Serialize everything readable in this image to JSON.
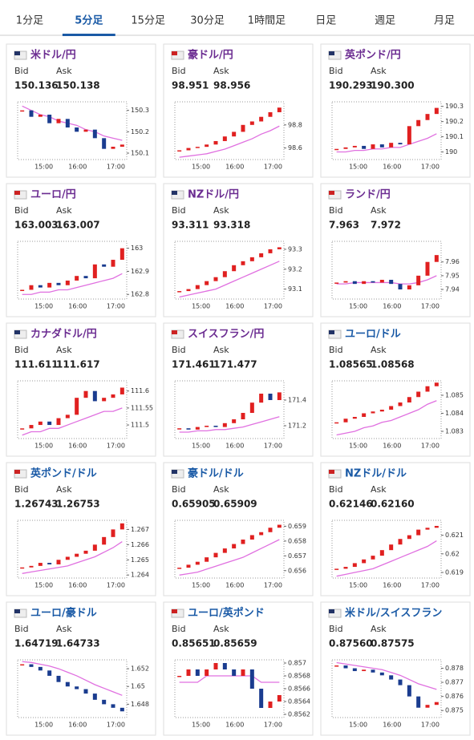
{
  "tabs": {
    "items": [
      "1分足",
      "5分足",
      "15分足",
      "30分足",
      "1時間足",
      "日足",
      "週足",
      "月足"
    ],
    "selected": 1
  },
  "labels": {
    "bid": "Bid",
    "ask": "Ask"
  },
  "cards": [
    {
      "title": "米ドル/円",
      "color": "#6b2c91",
      "bid": "150.136",
      "ask": "150.138",
      "chart": {
        "type": "candlestick",
        "xticks": [
          "15:00",
          "16:00",
          "17:00"
        ],
        "ylim": [
          150.07,
          150.34
        ],
        "yticks": [
          150.3,
          150.2,
          150.1
        ],
        "close": [
          150.3,
          150.27,
          150.28,
          150.24,
          150.26,
          150.22,
          150.2,
          150.21,
          150.17,
          150.12,
          150.13,
          150.14
        ],
        "ma": [
          150.32,
          150.3,
          150.28,
          150.27,
          150.25,
          150.24,
          150.23,
          150.21,
          150.2,
          150.18,
          150.17,
          150.16
        ]
      }
    },
    {
      "title": "豪ドル/円",
      "color": "#6b2c91",
      "bid": "98.951",
      "ask": "98.956",
      "chart": {
        "type": "candlestick",
        "xticks": [
          "15:00",
          "16:00",
          "17:00"
        ],
        "ylim": [
          98.5,
          99.0
        ],
        "yticks": [
          98.8,
          98.6
        ],
        "close": [
          98.58,
          98.6,
          98.61,
          98.63,
          98.66,
          98.7,
          98.74,
          98.8,
          98.83,
          98.87,
          98.91,
          98.95
        ],
        "ma": [
          98.52,
          98.53,
          98.54,
          98.55,
          98.57,
          98.59,
          98.62,
          98.65,
          98.68,
          98.72,
          98.75,
          98.79
        ]
      }
    },
    {
      "title": "英ポンド/円",
      "color": "#6b2c91",
      "bid": "190.293",
      "ask": "190.300",
      "chart": {
        "type": "candlestick",
        "xticks": [
          "15:00",
          "16:00",
          "17:00"
        ],
        "ylim": [
          189.95,
          190.33
        ],
        "yticks": [
          190.3,
          190.2,
          190.1,
          190
        ],
        "close": [
          190.02,
          190.03,
          190.04,
          190.02,
          190.05,
          190.03,
          190.06,
          190.05,
          190.17,
          190.21,
          190.25,
          190.29
        ],
        "ma": [
          190.0,
          190.0,
          190.01,
          190.01,
          190.02,
          190.02,
          190.03,
          190.03,
          190.05,
          190.07,
          190.09,
          190.12
        ]
      }
    },
    {
      "title": "ユーロ/円",
      "color": "#6b2c91",
      "bid": "163.003",
      "ask": "163.007",
      "chart": {
        "type": "candlestick",
        "xticks": [
          "15:00",
          "16:00",
          "17:00"
        ],
        "ylim": [
          162.78,
          163.03
        ],
        "yticks": [
          163,
          162.9,
          162.8
        ],
        "close": [
          162.82,
          162.84,
          162.83,
          162.85,
          162.84,
          162.86,
          162.88,
          162.87,
          162.93,
          162.92,
          162.95,
          163.0
        ],
        "ma": [
          162.8,
          162.8,
          162.81,
          162.81,
          162.82,
          162.82,
          162.83,
          162.84,
          162.85,
          162.86,
          162.87,
          162.89
        ]
      }
    },
    {
      "title": "NZドル/円",
      "color": "#6b2c91",
      "bid": "93.311",
      "ask": "93.318",
      "chart": {
        "type": "candlestick",
        "xticks": [
          "15:00",
          "16:00",
          "17:00"
        ],
        "ylim": [
          93.05,
          93.34
        ],
        "yticks": [
          93.3,
          93.2,
          93.1
        ],
        "close": [
          93.09,
          93.1,
          93.12,
          93.14,
          93.16,
          93.19,
          93.22,
          93.24,
          93.26,
          93.28,
          93.3,
          93.31
        ],
        "ma": [
          93.06,
          93.07,
          93.08,
          93.09,
          93.1,
          93.12,
          93.14,
          93.16,
          93.18,
          93.2,
          93.22,
          93.24
        ]
      }
    },
    {
      "title": "ランド/円",
      "color": "#6b2c91",
      "bid": "7.963",
      "ask": "7.972",
      "chart": {
        "type": "candlestick",
        "xticks": [
          "15:00",
          "16:00",
          "17:00"
        ],
        "ylim": [
          7.933,
          7.975
        ],
        "yticks": [
          7.96,
          7.95,
          7.94
        ],
        "close": [
          7.945,
          7.946,
          7.944,
          7.946,
          7.945,
          7.947,
          7.944,
          7.94,
          7.943,
          7.95,
          7.96,
          7.965
        ],
        "ma": [
          7.944,
          7.944,
          7.945,
          7.945,
          7.945,
          7.945,
          7.945,
          7.944,
          7.944,
          7.945,
          7.947,
          7.95
        ]
      }
    },
    {
      "title": "カナダドル/円",
      "color": "#6b2c91",
      "bid": "111.611",
      "ask": "111.617",
      "chart": {
        "type": "candlestick",
        "xticks": [
          "15:00",
          "16:00",
          "17:00"
        ],
        "ylim": [
          111.46,
          111.63
        ],
        "yticks": [
          111.6,
          111.55,
          111.5
        ],
        "close": [
          111.49,
          111.5,
          111.51,
          111.5,
          111.52,
          111.53,
          111.58,
          111.6,
          111.57,
          111.58,
          111.59,
          111.61
        ],
        "ma": [
          111.47,
          111.48,
          111.48,
          111.49,
          111.49,
          111.5,
          111.51,
          111.52,
          111.53,
          111.54,
          111.54,
          111.55
        ]
      }
    },
    {
      "title": "スイスフラン/円",
      "color": "#6b2c91",
      "bid": "171.461",
      "ask": "171.477",
      "chart": {
        "type": "candlestick",
        "xticks": [
          "15:00",
          "16:00",
          "17:00"
        ],
        "ylim": [
          171.1,
          171.55
        ],
        "yticks": [
          171.4,
          171.2
        ],
        "close": [
          171.18,
          171.17,
          171.19,
          171.2,
          171.19,
          171.22,
          171.25,
          171.3,
          171.38,
          171.45,
          171.4,
          171.46
        ],
        "ma": [
          171.15,
          171.15,
          171.16,
          171.16,
          171.17,
          171.17,
          171.18,
          171.19,
          171.21,
          171.23,
          171.25,
          171.27
        ]
      }
    },
    {
      "title": "ユーロ/ドル",
      "color": "#1a5aa6",
      "bid": "1.08565",
      "ask": "1.08568",
      "chart": {
        "type": "candlestick",
        "xticks": [
          "15:00",
          "16:00",
          "17:00"
        ],
        "ylim": [
          1.0826,
          1.0858
        ],
        "yticks": [
          1.085,
          1.084,
          1.083
        ],
        "close": [
          1.0835,
          1.0837,
          1.0838,
          1.084,
          1.0841,
          1.0842,
          1.0844,
          1.0846,
          1.0849,
          1.0852,
          1.0855,
          1.0857
        ],
        "ma": [
          1.0828,
          1.0829,
          1.083,
          1.0832,
          1.0833,
          1.0835,
          1.0836,
          1.0838,
          1.084,
          1.0842,
          1.0845,
          1.0847
        ]
      }
    },
    {
      "title": "英ポンド/ドル",
      "color": "#1a5aa6",
      "bid": "1.26743",
      "ask": "1.26753",
      "chart": {
        "type": "candlestick",
        "xticks": [
          "15:00",
          "16:00",
          "17:00"
        ],
        "ylim": [
          1.2638,
          1.2676
        ],
        "yticks": [
          1.267,
          1.266,
          1.265,
          1.264
        ],
        "close": [
          1.2645,
          1.2646,
          1.2648,
          1.2647,
          1.265,
          1.2652,
          1.2654,
          1.2656,
          1.266,
          1.2665,
          1.267,
          1.2674
        ],
        "ma": [
          1.2641,
          1.2642,
          1.2643,
          1.2644,
          1.2645,
          1.2646,
          1.2648,
          1.265,
          1.2652,
          1.2655,
          1.2658,
          1.2662
        ]
      }
    },
    {
      "title": "豪ドル/ドル",
      "color": "#1a5aa6",
      "bid": "0.65905",
      "ask": "0.65909",
      "chart": {
        "type": "candlestick",
        "xticks": [
          "15:00",
          "16:00",
          "17:00"
        ],
        "ylim": [
          0.6555,
          0.6594
        ],
        "yticks": [
          0.659,
          0.658,
          0.657,
          0.656
        ],
        "close": [
          0.6562,
          0.6564,
          0.6566,
          0.6569,
          0.6572,
          0.6575,
          0.6578,
          0.6581,
          0.6584,
          0.6586,
          0.6589,
          0.6591
        ],
        "ma": [
          0.6557,
          0.6558,
          0.6559,
          0.6561,
          0.6563,
          0.6565,
          0.6567,
          0.6569,
          0.6572,
          0.6575,
          0.6578,
          0.6581
        ]
      }
    },
    {
      "title": "NZドル/ドル",
      "color": "#1a5aa6",
      "bid": "0.62146",
      "ask": "0.62160",
      "chart": {
        "type": "candlestick",
        "xticks": [
          "15:00",
          "16:00",
          "17:00"
        ],
        "ylim": [
          0.6187,
          0.6218
        ],
        "yticks": [
          0.621,
          0.62,
          0.619
        ],
        "close": [
          0.6192,
          0.6193,
          0.6195,
          0.6197,
          0.6199,
          0.6202,
          0.6205,
          0.6208,
          0.621,
          0.6213,
          0.6214,
          0.6215
        ],
        "ma": [
          0.6188,
          0.6189,
          0.619,
          0.6191,
          0.6192,
          0.6194,
          0.6196,
          0.6198,
          0.62,
          0.6202,
          0.6204,
          0.6207
        ]
      }
    },
    {
      "title": "ユーロ/豪ドル",
      "color": "#1a5aa6",
      "bid": "1.64719",
      "ask": "1.64733",
      "chart": {
        "type": "candlestick",
        "xticks": [
          "15:00",
          "16:00",
          "17:00"
        ],
        "ylim": [
          1.6465,
          1.653
        ],
        "yticks": [
          1.652,
          1.65,
          1.648
        ],
        "close": [
          1.6525,
          1.6522,
          1.6518,
          1.6512,
          1.6505,
          1.65,
          1.6497,
          1.6492,
          1.6485,
          1.648,
          1.6476,
          1.6472
        ],
        "ma": [
          1.6528,
          1.6527,
          1.6525,
          1.6523,
          1.652,
          1.6516,
          1.6512,
          1.6507,
          1.6502,
          1.6498,
          1.6494,
          1.649
        ]
      }
    },
    {
      "title": "ユーロ/英ポンド",
      "color": "#1a5aa6",
      "bid": "0.85651",
      "ask": "0.85659",
      "chart": {
        "type": "candlestick",
        "xticks": [
          "15:00",
          "16:00",
          "17:00"
        ],
        "ylim": [
          0.85615,
          0.85705
        ],
        "yticks": [
          0.857,
          0.8568,
          0.8566,
          0.8564,
          0.8562
        ],
        "close": [
          0.8568,
          0.8569,
          0.8568,
          0.8569,
          0.857,
          0.8569,
          0.8568,
          0.8569,
          0.8566,
          0.8563,
          0.8564,
          0.8565
        ],
        "ma": [
          0.8567,
          0.8567,
          0.8567,
          0.8568,
          0.8568,
          0.8568,
          0.8568,
          0.8568,
          0.8568,
          0.8567,
          0.8567,
          0.8567
        ]
      }
    },
    {
      "title": "米ドル/スイスフラン",
      "color": "#1a5aa6",
      "bid": "0.87560",
      "ask": "0.87575",
      "chart": {
        "type": "candlestick",
        "xticks": [
          "15:00",
          "16:00",
          "17:00"
        ],
        "ylim": [
          0.8745,
          0.8786
        ],
        "yticks": [
          0.878,
          0.877,
          0.876,
          0.875
        ],
        "close": [
          0.8782,
          0.878,
          0.8778,
          0.8779,
          0.8777,
          0.8775,
          0.8772,
          0.8768,
          0.876,
          0.8752,
          0.8754,
          0.8756
        ],
        "ma": [
          0.8784,
          0.8783,
          0.8782,
          0.8781,
          0.878,
          0.8779,
          0.8777,
          0.8775,
          0.8772,
          0.8769,
          0.8767,
          0.8765
        ]
      }
    }
  ]
}
